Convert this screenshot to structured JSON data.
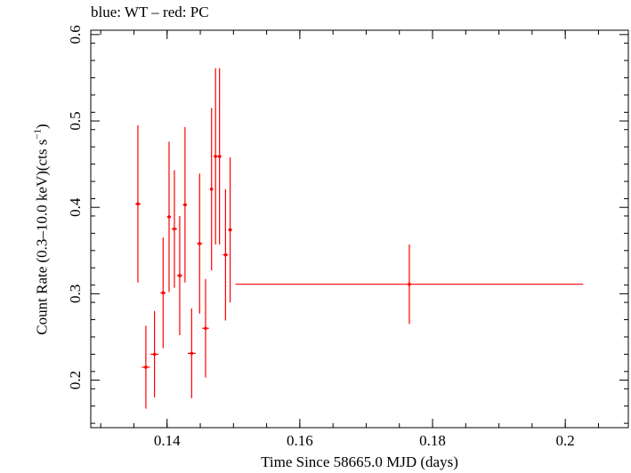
{
  "chart_data": {
    "type": "scatter",
    "title": "blue: WT – red: PC",
    "xlabel": "Time Since 58665.0 MJD (days)",
    "ylabel_main": "Count Rate (0.3–10.0 keV)(cts s",
    "ylabel_sup": "−1",
    "ylabel_end": ")",
    "xlim": [
      0.1285,
      0.2095
    ],
    "ylim": [
      0.145,
      0.605
    ],
    "x_ticks": [
      0.14,
      0.16,
      0.18,
      0.2
    ],
    "x_tick_labels": [
      "0.14",
      "0.16",
      "0.18",
      "0.2"
    ],
    "y_ticks": [
      0.2,
      0.3,
      0.4,
      0.5,
      0.6
    ],
    "y_tick_labels": [
      "0.2",
      "0.3",
      "0.4",
      "0.5",
      "0.6"
    ],
    "grid": false,
    "series": [
      {
        "color": "#ff0000",
        "points": [
          {
            "x": 0.1356,
            "y": 0.404,
            "xerr": 0.0004,
            "yerr": 0.091
          },
          {
            "x": 0.1368,
            "y": 0.215,
            "xerr": 0.0006,
            "yerr": 0.048
          },
          {
            "x": 0.1381,
            "y": 0.23,
            "xerr": 0.0006,
            "yerr": 0.05
          },
          {
            "x": 0.1394,
            "y": 0.301,
            "xerr": 0.0004,
            "yerr": 0.064
          },
          {
            "x": 0.1403,
            "y": 0.389,
            "xerr": 0.0003,
            "yerr": 0.087
          },
          {
            "x": 0.1411,
            "y": 0.375,
            "xerr": 0.0004,
            "yerr": 0.068
          },
          {
            "x": 0.1419,
            "y": 0.321,
            "xerr": 0.0004,
            "yerr": 0.069
          },
          {
            "x": 0.1427,
            "y": 0.403,
            "xerr": 0.0003,
            "yerr": 0.09
          },
          {
            "x": 0.1437,
            "y": 0.231,
            "xerr": 0.0006,
            "yerr": 0.052
          },
          {
            "x": 0.1449,
            "y": 0.358,
            "xerr": 0.0004,
            "yerr": 0.081
          },
          {
            "x": 0.1458,
            "y": 0.26,
            "xerr": 0.0005,
            "yerr": 0.057
          },
          {
            "x": 0.1467,
            "y": 0.421,
            "xerr": 0.0002,
            "yerr": 0.094
          },
          {
            "x": 0.1473,
            "y": 0.459,
            "xerr": 0.0003,
            "yerr": 0.102
          },
          {
            "x": 0.1479,
            "y": 0.459,
            "xerr": 0.0003,
            "yerr": 0.102
          },
          {
            "x": 0.1488,
            "y": 0.345,
            "xerr": 0.0004,
            "yerr": 0.076
          },
          {
            "x": 0.1495,
            "y": 0.374,
            "xerr": 0.0003,
            "yerr": 0.084
          },
          {
            "x": 0.1765,
            "y": 0.311,
            "xerr": 0.0262,
            "yerr": 0.046
          }
        ]
      }
    ]
  }
}
